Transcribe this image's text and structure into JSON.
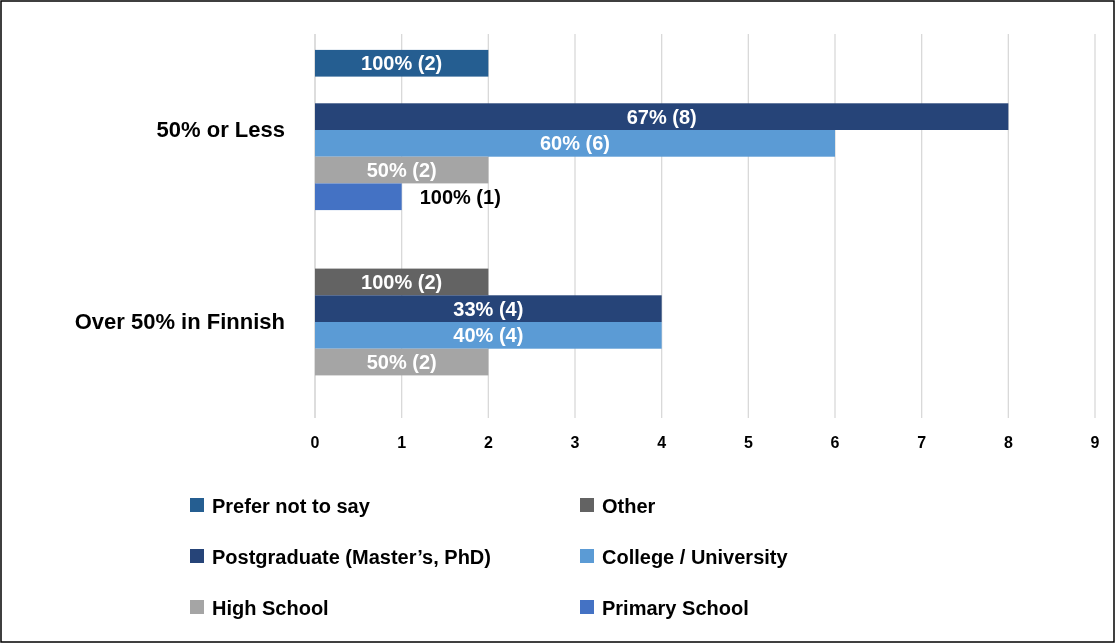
{
  "chart_data": {
    "type": "bar",
    "orientation": "horizontal",
    "categories": [
      "50% or Less",
      "Over 50% in Finnish"
    ],
    "xlim": [
      0,
      9
    ],
    "xticks": [
      0,
      1,
      2,
      3,
      4,
      5,
      6,
      7,
      8,
      9
    ],
    "grid": "x",
    "legend": "bottom",
    "series": [
      {
        "name": "Prefer not to say",
        "color": "#255e91",
        "values": [
          2,
          null
        ],
        "value_labels": [
          "100% (2)",
          null
        ]
      },
      {
        "name": "Other",
        "color": "#636363",
        "values": [
          null,
          2
        ],
        "value_labels": [
          null,
          "100% (2)"
        ]
      },
      {
        "name": "Postgraduate (Master’s, PhD)",
        "color": "#264478",
        "values": [
          8,
          4
        ],
        "value_labels": [
          "67% (8)",
          "33% (4)"
        ]
      },
      {
        "name": "College / University",
        "color": "#5b9bd5",
        "values": [
          6,
          4
        ],
        "value_labels": [
          "60% (6)",
          "40% (4)"
        ]
      },
      {
        "name": "High School",
        "color": "#a5a5a5",
        "values": [
          2,
          2
        ],
        "value_labels": [
          "50% (2)",
          "50% (2)"
        ]
      },
      {
        "name": "Primary School",
        "color": "#4472c4",
        "values": [
          1,
          null
        ],
        "value_labels": [
          "100% (1)",
          null
        ]
      }
    ]
  }
}
